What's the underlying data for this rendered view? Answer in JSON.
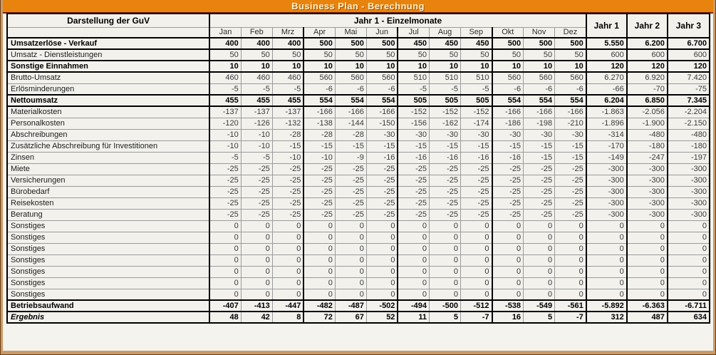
{
  "title": "Business Plan - Berechnung",
  "colors": {
    "titlebar_orange": "#E8830D",
    "titlebar_underline_maroon": "#7A1F0E",
    "frame_tan": "#C99A67",
    "sheet_background": "#F2F1EC",
    "grid_line": "#9B9B9B",
    "emphasis_border": "#000000"
  },
  "table": {
    "label_header": "Darstellung der GuV",
    "months_group_header": "Jahr 1 - Einzelmonate",
    "month_headers": [
      "Jan",
      "Feb",
      "Mrz",
      "Apr",
      "Mai",
      "Jun",
      "Jul",
      "Aug",
      "Sep",
      "Okt",
      "Nov",
      "Dez"
    ],
    "year_headers": [
      "Jahr 1",
      "Jahr 2",
      "Jahr 3"
    ],
    "rows": [
      {
        "label": "Umsatzerlöse - Verkauf",
        "style": "bold",
        "months": [
          "400",
          "400",
          "400",
          "500",
          "500",
          "500",
          "450",
          "450",
          "450",
          "500",
          "500",
          "500"
        ],
        "years": [
          "5.550",
          "6.200",
          "6.700"
        ]
      },
      {
        "label": "Umsatz - Dienstleistungen",
        "style": "normal",
        "months": [
          "50",
          "50",
          "50",
          "50",
          "50",
          "50",
          "50",
          "50",
          "50",
          "50",
          "50",
          "50"
        ],
        "years": [
          "600",
          "600",
          "600"
        ]
      },
      {
        "label": "Sonstige Einnahmen",
        "style": "bold",
        "months": [
          "10",
          "10",
          "10",
          "10",
          "10",
          "10",
          "10",
          "10",
          "10",
          "10",
          "10",
          "10"
        ],
        "years": [
          "120",
          "120",
          "120"
        ]
      },
      {
        "label": "Brutto-Umsatz",
        "style": "normal",
        "months": [
          "460",
          "460",
          "460",
          "560",
          "560",
          "560",
          "510",
          "510",
          "510",
          "560",
          "560",
          "560"
        ],
        "years": [
          "6.270",
          "6.920",
          "7.420"
        ]
      },
      {
        "label": "Erlösminderungen",
        "style": "normal",
        "months": [
          "-5",
          "-5",
          "-5",
          "-6",
          "-6",
          "-6",
          "-5",
          "-5",
          "-5",
          "-6",
          "-6",
          "-6"
        ],
        "years": [
          "-66",
          "-70",
          "-75"
        ]
      },
      {
        "label": "Nettoumsatz",
        "style": "bold",
        "months": [
          "455",
          "455",
          "455",
          "554",
          "554",
          "554",
          "505",
          "505",
          "505",
          "554",
          "554",
          "554"
        ],
        "years": [
          "6.204",
          "6.850",
          "7.345"
        ]
      },
      {
        "label": "Materialkosten",
        "style": "normal",
        "months": [
          "-137",
          "-137",
          "-137",
          "-166",
          "-166",
          "-166",
          "-152",
          "-152",
          "-152",
          "-166",
          "-166",
          "-166"
        ],
        "years": [
          "-1.863",
          "-2.056",
          "-2.204"
        ]
      },
      {
        "label": "Personalkosten",
        "style": "normal",
        "months": [
          "-120",
          "-126",
          "-132",
          "-138",
          "-144",
          "-150",
          "-156",
          "-162",
          "-174",
          "-186",
          "-198",
          "-210"
        ],
        "years": [
          "-1.896",
          "-1.900",
          "-2.150"
        ]
      },
      {
        "label": "Abschreibungen",
        "style": "normal",
        "months": [
          "-10",
          "-10",
          "-28",
          "-28",
          "-28",
          "-30",
          "-30",
          "-30",
          "-30",
          "-30",
          "-30",
          "-30"
        ],
        "years": [
          "-314",
          "-480",
          "-480"
        ]
      },
      {
        "label": "Zusätzliche Abschreibung für Investitionen",
        "style": "normal",
        "months": [
          "-10",
          "-10",
          "-15",
          "-15",
          "-15",
          "-15",
          "-15",
          "-15",
          "-15",
          "-15",
          "-15",
          "-15"
        ],
        "years": [
          "-170",
          "-180",
          "-180"
        ]
      },
      {
        "label": "Zinsen",
        "style": "normal",
        "months": [
          "-5",
          "-5",
          "-10",
          "-10",
          "-9",
          "-16",
          "-16",
          "-16",
          "-16",
          "-16",
          "-15",
          "-15"
        ],
        "years": [
          "-149",
          "-247",
          "-197"
        ]
      },
      {
        "label": "Miete",
        "style": "normal",
        "months": [
          "-25",
          "-25",
          "-25",
          "-25",
          "-25",
          "-25",
          "-25",
          "-25",
          "-25",
          "-25",
          "-25",
          "-25"
        ],
        "years": [
          "-300",
          "-300",
          "-300"
        ]
      },
      {
        "label": "Versicherungen",
        "style": "normal",
        "months": [
          "-25",
          "-25",
          "-25",
          "-25",
          "-25",
          "-25",
          "-25",
          "-25",
          "-25",
          "-25",
          "-25",
          "-25"
        ],
        "years": [
          "-300",
          "-300",
          "-300"
        ]
      },
      {
        "label": "Bürobedarf",
        "style": "normal",
        "months": [
          "-25",
          "-25",
          "-25",
          "-25",
          "-25",
          "-25",
          "-25",
          "-25",
          "-25",
          "-25",
          "-25",
          "-25"
        ],
        "years": [
          "-300",
          "-300",
          "-300"
        ]
      },
      {
        "label": "Reisekosten",
        "style": "normal",
        "months": [
          "-25",
          "-25",
          "-25",
          "-25",
          "-25",
          "-25",
          "-25",
          "-25",
          "-25",
          "-25",
          "-25",
          "-25"
        ],
        "years": [
          "-300",
          "-300",
          "-300"
        ]
      },
      {
        "label": "Beratung",
        "style": "normal",
        "months": [
          "-25",
          "-25",
          "-25",
          "-25",
          "-25",
          "-25",
          "-25",
          "-25",
          "-25",
          "-25",
          "-25",
          "-25"
        ],
        "years": [
          "-300",
          "-300",
          "-300"
        ]
      },
      {
        "label": "Sonstiges",
        "style": "normal",
        "months": [
          "0",
          "0",
          "0",
          "0",
          "0",
          "0",
          "0",
          "0",
          "0",
          "0",
          "0",
          "0"
        ],
        "years": [
          "0",
          "0",
          "0"
        ]
      },
      {
        "label": "Sonstiges",
        "style": "normal",
        "months": [
          "0",
          "0",
          "0",
          "0",
          "0",
          "0",
          "0",
          "0",
          "0",
          "0",
          "0",
          "0"
        ],
        "years": [
          "0",
          "0",
          "0"
        ]
      },
      {
        "label": "Sonstiges",
        "style": "normal",
        "months": [
          "0",
          "0",
          "0",
          "0",
          "0",
          "0",
          "0",
          "0",
          "0",
          "0",
          "0",
          "0"
        ],
        "years": [
          "0",
          "0",
          "0"
        ]
      },
      {
        "label": "Sonstiges",
        "style": "normal",
        "months": [
          "0",
          "0",
          "0",
          "0",
          "0",
          "0",
          "0",
          "0",
          "0",
          "0",
          "0",
          "0"
        ],
        "years": [
          "0",
          "0",
          "0"
        ]
      },
      {
        "label": "Sonstiges",
        "style": "normal",
        "months": [
          "0",
          "0",
          "0",
          "0",
          "0",
          "0",
          "0",
          "0",
          "0",
          "0",
          "0",
          "0"
        ],
        "years": [
          "0",
          "0",
          "0"
        ]
      },
      {
        "label": "Sonstiges",
        "style": "normal",
        "months": [
          "0",
          "0",
          "0",
          "0",
          "0",
          "0",
          "0",
          "0",
          "0",
          "0",
          "0",
          "0"
        ],
        "years": [
          "0",
          "0",
          "0"
        ]
      },
      {
        "label": "Sonstiges",
        "style": "normal",
        "months": [
          "0",
          "0",
          "0",
          "0",
          "0",
          "0",
          "0",
          "0",
          "0",
          "0",
          "0",
          "0"
        ],
        "years": [
          "0",
          "0",
          "0"
        ]
      },
      {
        "label": "Betriebsaufwand",
        "style": "bold",
        "months": [
          "-407",
          "-413",
          "-447",
          "-482",
          "-487",
          "-502",
          "-494",
          "-500",
          "-512",
          "-538",
          "-549",
          "-561"
        ],
        "years": [
          "-5.892",
          "-6.363",
          "-6.711"
        ]
      },
      {
        "label": "Ergebnis",
        "style": "bolditalic",
        "months": [
          "48",
          "42",
          "8",
          "72",
          "67",
          "52",
          "11",
          "5",
          "-7",
          "16",
          "5",
          "-7"
        ],
        "years": [
          "312",
          "487",
          "634"
        ]
      }
    ]
  }
}
